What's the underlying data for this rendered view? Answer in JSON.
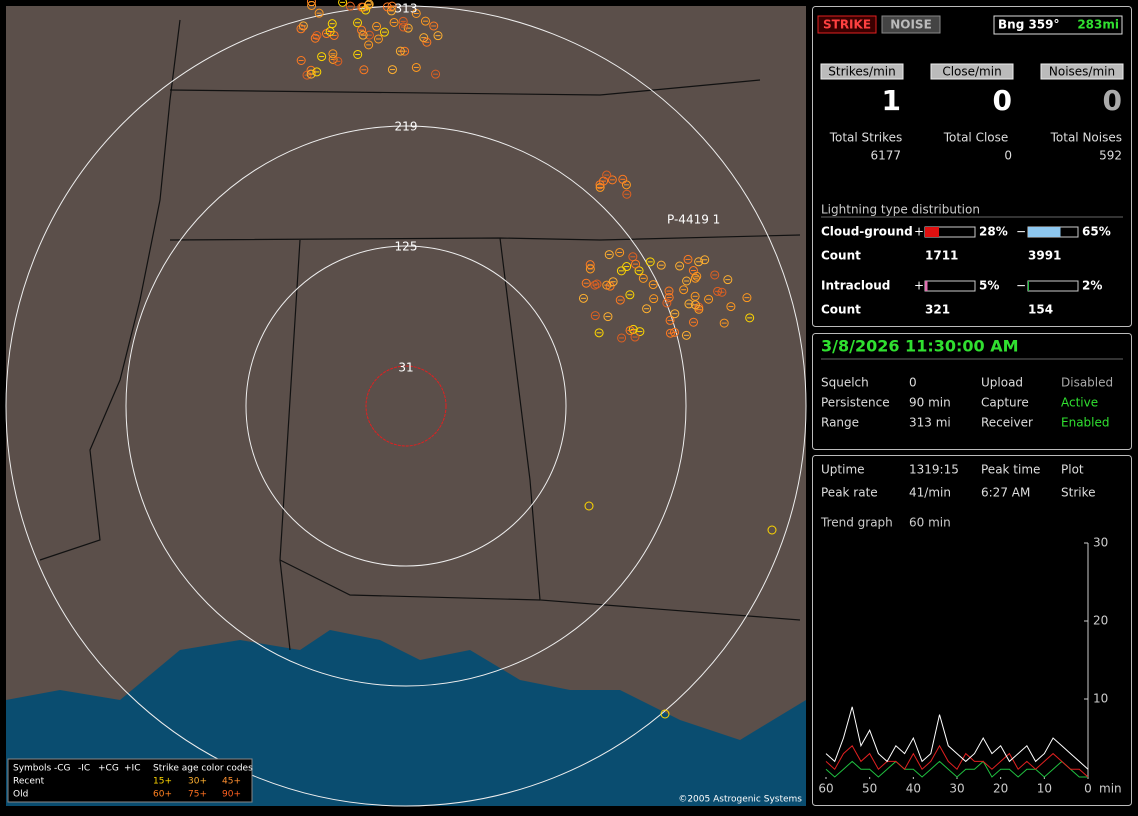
{
  "map": {
    "range_rings": [
      "31",
      "125",
      "219",
      "313"
    ],
    "marker": "P-4419 1",
    "copyright": "©2005 Astrogenic Systems",
    "legend": {
      "symbols": "Symbols",
      "types": [
        "-CG",
        "-IC",
        "+CG",
        "+IC"
      ],
      "age_title": "Strike age color codes",
      "rows": [
        "Recent",
        "Old"
      ],
      "recent_ages": [
        "15+",
        "30+",
        "45+"
      ],
      "old_ages": [
        "60+",
        "75+",
        "90+"
      ]
    }
  },
  "status": {
    "strike": "STRIKE",
    "noise": "NOISE",
    "bearing": "Bng 359°",
    "distance": "283mi"
  },
  "rates": [
    {
      "label": "Strikes/min",
      "value": 1,
      "total_label": "Total Strikes",
      "total": 6177
    },
    {
      "label": "Close/min",
      "value": 0,
      "total_label": "Total Close",
      "total": 0
    },
    {
      "label": "Noises/min",
      "value": 0,
      "total_label": "Total Noises",
      "total": 592
    }
  ],
  "distribution": {
    "title": "Lightning type distribution",
    "count_label": "Count",
    "rows": [
      {
        "name": "Cloud-ground",
        "pos_sign": "+",
        "pos": {
          "value": 28,
          "label": "28%"
        },
        "neg_sign": "−",
        "neg": {
          "value": 65,
          "label": "65%"
        },
        "pos_count": 1711,
        "neg_count": 3991
      },
      {
        "name": "Intracloud",
        "pos_sign": "+",
        "pos": {
          "value": 5,
          "label": "5%"
        },
        "neg_sign": "−",
        "neg": {
          "value": 2,
          "label": "2%"
        },
        "pos_count": 321,
        "neg_count": 154
      }
    ]
  },
  "clock": {
    "datetime": "3/8/2026 11:30:00 AM",
    "rows": [
      [
        "Squelch",
        "0",
        "Upload",
        "Disabled"
      ],
      [
        "Persistence",
        "90 min",
        "Capture",
        "Active"
      ],
      [
        "Range",
        "313 mi",
        "Receiver",
        "Enabled"
      ]
    ]
  },
  "stats": {
    "rows": [
      [
        "Uptime",
        "1319:15",
        "Peak time",
        "Plot"
      ],
      [
        "Peak rate",
        "41/min",
        "6:27 AM",
        "Strike"
      ]
    ],
    "trend_label": "Trend graph",
    "trend_value": "60 min"
  },
  "chart_data": {
    "type": "line",
    "x": [
      60,
      58,
      56,
      54,
      52,
      50,
      48,
      46,
      44,
      42,
      40,
      38,
      36,
      34,
      32,
      30,
      28,
      26,
      24,
      22,
      20,
      18,
      16,
      14,
      12,
      10,
      8,
      6,
      4,
      2,
      0
    ],
    "xlim": [
      60,
      0
    ],
    "xticks": [
      60,
      50,
      40,
      30,
      20,
      10,
      0
    ],
    "x_unit": "min",
    "ylim": [
      0,
      30
    ],
    "yticks": [
      10,
      20,
      30
    ],
    "series": [
      {
        "color": "#ffffff",
        "values": [
          3,
          2,
          5,
          9,
          4,
          6,
          3,
          2,
          4,
          3,
          5,
          2,
          3,
          8,
          4,
          3,
          2,
          3,
          5,
          3,
          4,
          2,
          3,
          4,
          2,
          3,
          5,
          4,
          3,
          2,
          1
        ]
      },
      {
        "color": "#e02020",
        "values": [
          2,
          1,
          3,
          4,
          2,
          3,
          1,
          2,
          2,
          1,
          3,
          1,
          2,
          4,
          2,
          1,
          3,
          2,
          2,
          1,
          2,
          3,
          1,
          2,
          1,
          2,
          3,
          2,
          1,
          1,
          0
        ]
      },
      {
        "color": "#20c040",
        "values": [
          1,
          0,
          1,
          2,
          1,
          1,
          0,
          1,
          2,
          1,
          1,
          0,
          1,
          2,
          1,
          0,
          1,
          1,
          2,
          0,
          1,
          1,
          0,
          1,
          1,
          0,
          1,
          2,
          1,
          0,
          0
        ]
      }
    ]
  }
}
